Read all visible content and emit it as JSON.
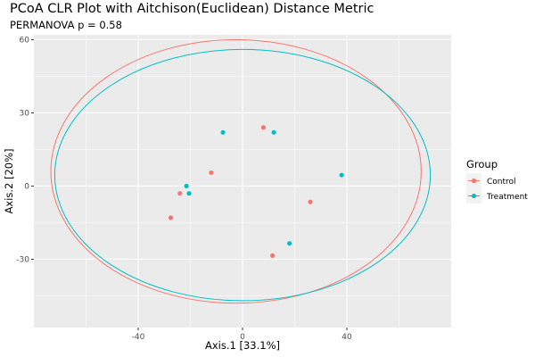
{
  "chart_data": {
    "type": "scatter",
    "title": "PCoA CLR Plot with Aitchison(Euclidean) Distance Metric",
    "subtitle": "PERMANOVA p = 0.58",
    "xlabel": "Axis.1   [33.1%]",
    "ylabel": "Axis.2   [20%]",
    "xlim": [
      -80,
      80
    ],
    "ylim": [
      -58,
      62
    ],
    "x_ticks": [
      -40,
      0,
      40
    ],
    "y_ticks": [
      -30,
      0,
      30,
      60
    ],
    "grid": true,
    "legend": {
      "title": "Group",
      "position": "right",
      "entries": [
        "Control",
        "Treatment"
      ]
    },
    "colors": {
      "Control": "#F8766D",
      "Treatment": "#00BFC4"
    },
    "series": [
      {
        "name": "Control",
        "points": [
          {
            "x": 8,
            "y": 24
          },
          {
            "x": -12,
            "y": 5.5
          },
          {
            "x": -24,
            "y": -3
          },
          {
            "x": -27.5,
            "y": -13
          },
          {
            "x": 26,
            "y": -6.5
          },
          {
            "x": 11.5,
            "y": -28.5
          }
        ]
      },
      {
        "name": "Treatment",
        "points": [
          {
            "x": -7.5,
            "y": 22
          },
          {
            "x": 12,
            "y": 22
          },
          {
            "x": -21.5,
            "y": 0
          },
          {
            "x": -20.5,
            "y": -3
          },
          {
            "x": 38,
            "y": 4.5
          },
          {
            "x": 18,
            "y": -23.5
          }
        ]
      }
    ],
    "ellipses": [
      {
        "group": "Control",
        "cx": -2.5,
        "cy": 6,
        "rx": 71,
        "ry": 54
      },
      {
        "group": "Treatment",
        "cx": 0,
        "cy": 4.5,
        "rx": 72,
        "ry": 51.5
      }
    ]
  }
}
